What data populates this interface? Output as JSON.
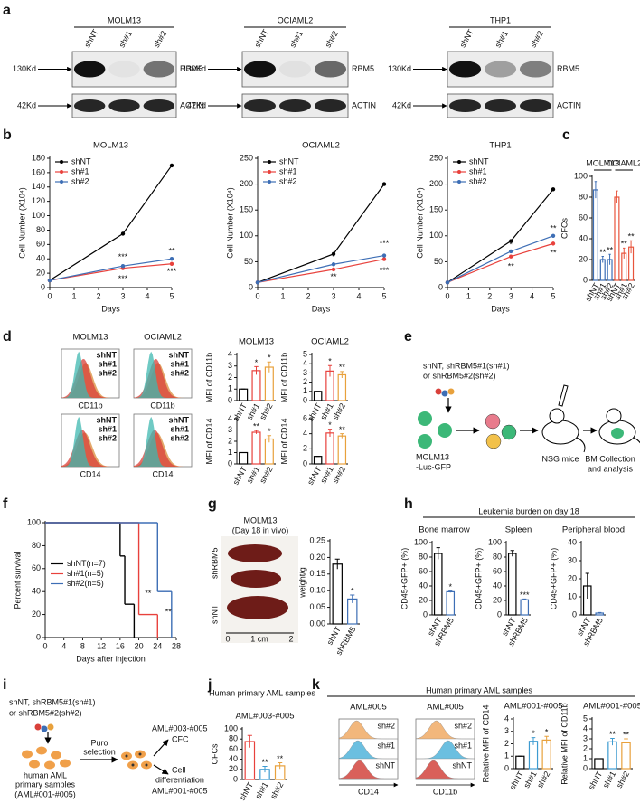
{
  "panel_labels": [
    "a",
    "b",
    "c",
    "d",
    "e",
    "f",
    "g",
    "h",
    "i",
    "j",
    "k"
  ],
  "blots": [
    {
      "cell": "MOLM13",
      "lanes": [
        "shNT",
        "sh#1",
        "sh#2"
      ],
      "markers": [
        "130Kd",
        "42Kd"
      ],
      "proteins": [
        "RBM5",
        "ACTIN"
      ]
    },
    {
      "cell": "OCIAML2",
      "lanes": [
        "shNT",
        "sh#1",
        "sh#2"
      ],
      "markers": [
        "130Kd",
        "42Kd"
      ],
      "proteins": [
        "RBM5",
        "ACTIN"
      ]
    },
    {
      "cell": "THP1",
      "lanes": [
        "shNT",
        "sh#1",
        "sh#2"
      ],
      "markers": [
        "130Kd",
        "42Kd"
      ],
      "proteins": [
        "RBM5",
        "ACTIN"
      ]
    }
  ],
  "flow_d": [
    {
      "title": "MOLM13",
      "plots": [
        {
          "marker": "CD11b",
          "legend": [
            "shNT",
            "sh#1",
            "sh#2"
          ]
        },
        {
          "marker": "CD14",
          "legend": [
            "shNT",
            "sh#1",
            "sh#2"
          ]
        }
      ]
    },
    {
      "title": "OCIAML2",
      "plots": [
        {
          "marker": "CD11b",
          "legend": [
            "shNT",
            "sh#1",
            "sh#2"
          ]
        },
        {
          "marker": "CD14",
          "legend": [
            "shNT",
            "sh#1",
            "sh#2"
          ]
        }
      ]
    }
  ],
  "diagram_e": {
    "vector_text": [
      "shNT, shRBM5#1(sh#1)",
      "or shRBM5#2(sh#2)"
    ],
    "cells": [
      "MOLM13",
      "-Luc-GFP"
    ],
    "mice": "NSG mice",
    "outcome": [
      "BM Collection",
      "and analysis"
    ]
  },
  "image_g": {
    "title": [
      "MOLM13",
      "(Day 18 in vivo)"
    ],
    "groups": [
      "shNT",
      "shRBM5"
    ],
    "ruler": [
      "0",
      "1 cm",
      "2"
    ]
  },
  "headers": {
    "h": "Leukemia burden on day 18",
    "j": "Human primary AML samples",
    "k": "Human primary AML samples"
  },
  "diagram_i": {
    "vector_text": [
      "shNT, shRBM5#1(sh#1)",
      "or shRBM5#2(sh#2)"
    ],
    "step": [
      "Puro",
      "selection"
    ],
    "cfc": [
      "AML#003-#005",
      "CFC"
    ],
    "diff": [
      "Cell",
      "differentiation",
      "AML#001-#005"
    ],
    "source": [
      "human AML",
      "primary samples",
      "(AML#001-#005)"
    ]
  },
  "flow_k": [
    {
      "title": "AML#005",
      "marker": "CD14",
      "labels": [
        "sh#2",
        "sh#1",
        "shNT"
      ]
    },
    {
      "title": "AML#005",
      "marker": "CD11b",
      "labels": [
        "sh#2",
        "sh#1",
        "shNT"
      ]
    }
  ],
  "chart_data": [
    {
      "type": "line",
      "title": "MOLM13",
      "ylabel": "Cell Number (X10⁴)",
      "xlabel": "Days",
      "x": [
        0,
        3,
        5
      ],
      "xlim": [
        0,
        5
      ],
      "xticks": [
        0,
        1,
        2,
        3,
        4,
        5
      ],
      "ylim": [
        0,
        180
      ],
      "yticks": [
        0,
        20,
        40,
        60,
        80,
        100,
        120,
        140,
        160,
        180
      ],
      "legend": "upper left",
      "series": [
        {
          "name": "shNT",
          "color": "#000000",
          "values": [
            10,
            75,
            170
          ]
        },
        {
          "name": "sh#1",
          "color": "#e8413c",
          "values": [
            10,
            27,
            33
          ]
        },
        {
          "name": "sh#2",
          "color": "#3d6eb5",
          "values": [
            10,
            30,
            40
          ]
        }
      ],
      "annotations": [
        {
          "text": "***",
          "x": 3,
          "y": 42
        },
        {
          "text": "***",
          "x": 3,
          "y": 12
        },
        {
          "text": "**",
          "x": 5,
          "y": 50
        },
        {
          "text": "***",
          "x": 5,
          "y": 22
        }
      ]
    },
    {
      "type": "line",
      "title": "OCIAML2",
      "ylabel": "Cell Number (X10⁴)",
      "xlabel": "Days",
      "x": [
        0,
        3,
        5
      ],
      "xlim": [
        0,
        5
      ],
      "xticks": [
        0,
        1,
        2,
        3,
        4,
        5
      ],
      "ylim": [
        0,
        250
      ],
      "yticks": [
        0,
        50,
        100,
        150,
        200,
        250
      ],
      "legend": "upper left",
      "series": [
        {
          "name": "shNT",
          "color": "#000000",
          "values": [
            10,
            65,
            200
          ]
        },
        {
          "name": "sh#1",
          "color": "#e8413c",
          "values": [
            10,
            35,
            55
          ]
        },
        {
          "name": "sh#2",
          "color": "#3d6eb5",
          "values": [
            10,
            45,
            62
          ]
        }
      ],
      "annotations": [
        {
          "text": "*",
          "x": 3,
          "y": 58
        },
        {
          "text": "**",
          "x": 3,
          "y": 20
        },
        {
          "text": "***",
          "x": 5,
          "y": 85
        },
        {
          "text": "***",
          "x": 5,
          "y": 32
        }
      ]
    },
    {
      "type": "line",
      "title": "THP1",
      "ylabel": "Cell Number (X10⁴)",
      "xlabel": "Days",
      "x": [
        0,
        3,
        5
      ],
      "xlim": [
        0,
        5
      ],
      "xticks": [
        0,
        1,
        2,
        3,
        4,
        5
      ],
      "ylim": [
        0,
        250
      ],
      "yticks": [
        0,
        50,
        100,
        150,
        200,
        250
      ],
      "legend": "upper left",
      "series": [
        {
          "name": "shNT",
          "color": "#000000",
          "values": [
            10,
            90,
            190
          ]
        },
        {
          "name": "sh#1",
          "color": "#e8413c",
          "values": [
            10,
            60,
            85
          ]
        },
        {
          "name": "sh#2",
          "color": "#3d6eb5",
          "values": [
            10,
            70,
            100
          ]
        }
      ],
      "annotations": [
        {
          "text": "*",
          "x": 3,
          "y": 82
        },
        {
          "text": "**",
          "x": 3,
          "y": 40
        },
        {
          "text": "**",
          "x": 5,
          "y": 113
        },
        {
          "text": "**",
          "x": 5,
          "y": 66
        }
      ]
    },
    {
      "type": "bar",
      "ylabel": "CFCs",
      "groups": [
        "MOLM13",
        "OCIAML2"
      ],
      "categories": [
        "shNT",
        "sh#1",
        "sh#2",
        "shNT",
        "sh#1",
        "sh#2"
      ],
      "values": [
        87,
        20,
        20,
        80,
        26,
        32
      ],
      "errors": [
        8,
        3,
        5,
        6,
        5,
        6
      ],
      "colors": [
        "#3d6eb5",
        "#3d6eb5",
        "#3d6eb5",
        "#e8543c",
        "#e8543c",
        "#e8543c"
      ],
      "significance": [
        null,
        "**",
        "**",
        null,
        "**",
        "**"
      ],
      "ylim": [
        0,
        100
      ],
      "yticks": [
        0,
        20,
        40,
        60,
        80,
        100
      ]
    },
    {
      "type": "bar",
      "title": "MOLM13",
      "ylabel": "MFI of CD11b",
      "categories": [
        "shNT",
        "sh#1",
        "sh#2"
      ],
      "values": [
        1,
        2.6,
        2.9
      ],
      "errors": [
        0,
        0.35,
        0.45
      ],
      "colors": [
        "#000000",
        "#e8413c",
        "#e8a13c"
      ],
      "significance": [
        null,
        "*",
        "*"
      ],
      "ylim": [
        0,
        4
      ],
      "yticks": [
        0,
        1,
        2,
        3,
        4
      ]
    },
    {
      "type": "bar",
      "title": "OCIAML2",
      "ylabel": "MFI of CD11b",
      "categories": [
        "shNT",
        "sh#1",
        "sh#2"
      ],
      "values": [
        1,
        3.2,
        2.8
      ],
      "errors": [
        0,
        0.6,
        0.35
      ],
      "colors": [
        "#000000",
        "#e8413c",
        "#e8a13c"
      ],
      "significance": [
        null,
        "*",
        "**"
      ],
      "ylim": [
        0,
        5
      ],
      "yticks": [
        0,
        1,
        2,
        3,
        4,
        5
      ]
    },
    {
      "type": "bar",
      "ylabel": "MFI of CD14",
      "categories": [
        "shNT",
        "sh#1",
        "sh#2"
      ],
      "values": [
        1,
        2.8,
        2.2
      ],
      "errors": [
        0,
        0.15,
        0.3
      ],
      "colors": [
        "#000000",
        "#e8413c",
        "#e8a13c"
      ],
      "significance": [
        null,
        "**",
        "*"
      ],
      "ylim": [
        0,
        4
      ],
      "yticks": [
        0,
        1,
        2,
        3,
        4
      ]
    },
    {
      "type": "bar",
      "ylabel": "MFI of CD14",
      "categories": [
        "shNT",
        "sh#1",
        "sh#2"
      ],
      "values": [
        1,
        4.1,
        3.7
      ],
      "errors": [
        0,
        0.5,
        0.3
      ],
      "colors": [
        "#000000",
        "#e8413c",
        "#e8a13c"
      ],
      "significance": [
        null,
        "*",
        "**"
      ],
      "ylim": [
        0,
        6
      ],
      "yticks": [
        0,
        2,
        4,
        6
      ]
    },
    {
      "type": "step",
      "ylabel": "Percent survival",
      "xlabel": "Days after injection",
      "xlim": [
        0,
        28
      ],
      "xticks": [
        0,
        4,
        8,
        12,
        16,
        20,
        24,
        28
      ],
      "ylim": [
        0,
        100
      ],
      "yticks": [
        0,
        20,
        40,
        60,
        80,
        100
      ],
      "legend": "center left",
      "series": [
        {
          "name": "shNT(n=7)",
          "color": "#000000",
          "x": [
            0,
            16,
            17,
            19
          ],
          "values": [
            100,
            71,
            29,
            0
          ]
        },
        {
          "name": "sh#1(n=5)",
          "color": "#e8413c",
          "x": [
            0,
            20,
            24
          ],
          "values": [
            100,
            20,
            0
          ]
        },
        {
          "name": "sh#2(n=5)",
          "color": "#3d6eb5",
          "x": [
            0,
            24,
            27
          ],
          "values": [
            100,
            40,
            0
          ]
        }
      ],
      "annotations": [
        {
          "text": "**",
          "x": 22,
          "y": 38
        },
        {
          "text": "**",
          "x": 26.3,
          "y": 22
        }
      ]
    },
    {
      "type": "bar",
      "ylabel": "weight/g",
      "categories": [
        "shNT",
        "shRBM5"
      ],
      "values": [
        0.18,
        0.075
      ],
      "errors": [
        0.015,
        0.012
      ],
      "colors": [
        "#000000",
        "#3d6eb5"
      ],
      "significance": [
        null,
        "*"
      ],
      "ylim": [
        0,
        0.25
      ],
      "yticks": [
        {
          "value": 0,
          "label": "0.00"
        },
        0.05,
        {
          "value": 0.1,
          "label": "0.10"
        },
        0.15,
        {
          "value": 0.2,
          "label": "0.20"
        },
        0.25
      ]
    },
    {
      "type": "bar",
      "title": "Bone marrow",
      "ylabel": "CD45+GFP+ (%)",
      "categories": [
        "shNT",
        "shRBM5"
      ],
      "values": [
        85,
        32
      ],
      "errors": [
        8,
        1
      ],
      "colors": [
        "#000000",
        "#3d6eb5"
      ],
      "significance": [
        null,
        "*"
      ],
      "ylim": [
        0,
        100
      ],
      "yticks": [
        0,
        20,
        40,
        60,
        80,
        100
      ]
    },
    {
      "type": "bar",
      "title": "Spleen",
      "ylabel": "CD45+GFP+ (%)",
      "categories": [
        "shNT",
        "shRBM5"
      ],
      "values": [
        85,
        21
      ],
      "errors": [
        4,
        1
      ],
      "colors": [
        "#000000",
        "#3d6eb5"
      ],
      "significance": [
        null,
        "***"
      ],
      "ylim": [
        0,
        100
      ],
      "yticks": [
        0,
        20,
        40,
        60,
        80,
        100
      ]
    },
    {
      "type": "bar",
      "title": "Peripheral blood",
      "ylabel": "CD45+GFP+ (%)",
      "categories": [
        "shNT",
        "shRBM5"
      ],
      "values": [
        16,
        1
      ],
      "errors": [
        7,
        0.3
      ],
      "colors": [
        "#000000",
        "#3d6eb5"
      ],
      "ylim": [
        0,
        40
      ],
      "yticks": [
        0,
        10,
        20,
        30,
        40
      ]
    },
    {
      "type": "bar",
      "title": "AML#003-#005",
      "ylabel": "CFCs",
      "categories": [
        "shNT",
        "sh#1",
        "sh#2"
      ],
      "values": [
        75,
        20,
        27
      ],
      "errors": [
        12,
        6,
        6
      ],
      "colors": [
        "#e8413c",
        "#3d9bd1",
        "#e8a13c"
      ],
      "significance": [
        null,
        "**",
        "**"
      ],
      "ylim": [
        0,
        100
      ],
      "yticks": [
        0,
        20,
        40,
        60,
        80,
        100
      ]
    },
    {
      "type": "bar",
      "title": "AML#001-#005",
      "ylabel": "Relative MFI of CD14",
      "categories": [
        "shNT",
        "sh#1",
        "sh#2"
      ],
      "values": [
        1,
        2.2,
        2.3
      ],
      "errors": [
        0,
        0.3,
        0.3
      ],
      "colors": [
        "#000000",
        "#3d9bd1",
        "#e8a13c"
      ],
      "significance": [
        null,
        "*",
        "*"
      ],
      "ylim": [
        0,
        4
      ],
      "yticks": [
        0,
        1,
        2,
        3,
        4
      ]
    },
    {
      "type": "bar",
      "title": "AML#001-#005",
      "ylabel": "Relative MFI of CD11b",
      "categories": [
        "shNT",
        "sh#1",
        "sh#2"
      ],
      "values": [
        1,
        2.7,
        2.6
      ],
      "errors": [
        0,
        0.35,
        0.4
      ],
      "colors": [
        "#000000",
        "#3d9bd1",
        "#e8a13c"
      ],
      "significance": [
        null,
        "**",
        "**"
      ],
      "ylim": [
        0,
        5
      ],
      "yticks": [
        0,
        1,
        2,
        3,
        4,
        5
      ]
    }
  ]
}
